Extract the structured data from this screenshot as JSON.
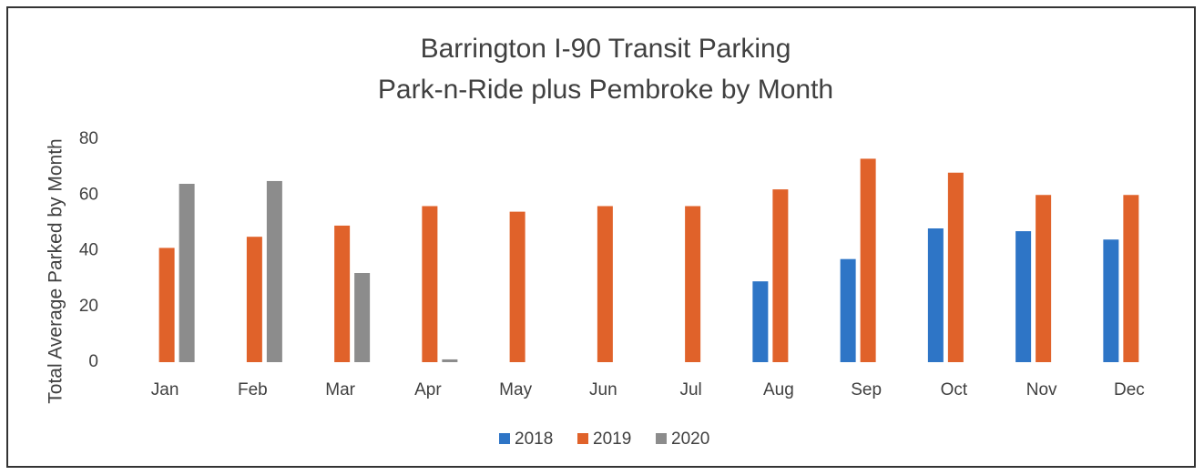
{
  "chart_data": {
    "type": "bar",
    "title": [
      "Barrington I-90 Transit Parking",
      "Park-n-Ride plus Pembroke by Month"
    ],
    "y_label": "Total Average Parked by Month",
    "categories": [
      "Jan",
      "Feb",
      "Mar",
      "Apr",
      "May",
      "Jun",
      "Jul",
      "Aug",
      "Sep",
      "Oct",
      "Nov",
      "Dec"
    ],
    "series": [
      {
        "name": "2018",
        "color": "#2e75c6",
        "values": [
          null,
          null,
          null,
          null,
          null,
          null,
          null,
          29,
          37,
          48,
          47,
          44
        ]
      },
      {
        "name": "2019",
        "color": "#e0622a",
        "values": [
          41,
          45,
          49,
          56,
          54,
          56,
          56,
          62,
          73,
          68,
          60,
          60
        ]
      },
      {
        "name": "2020",
        "color": "#8c8c8c",
        "values": [
          64,
          65,
          32,
          1,
          null,
          null,
          null,
          null,
          null,
          null,
          null,
          null
        ]
      }
    ],
    "ylim": [
      0,
      80
    ],
    "yticks": [
      0,
      20,
      40,
      60,
      80
    ],
    "grid": false,
    "legend": "bottom"
  }
}
